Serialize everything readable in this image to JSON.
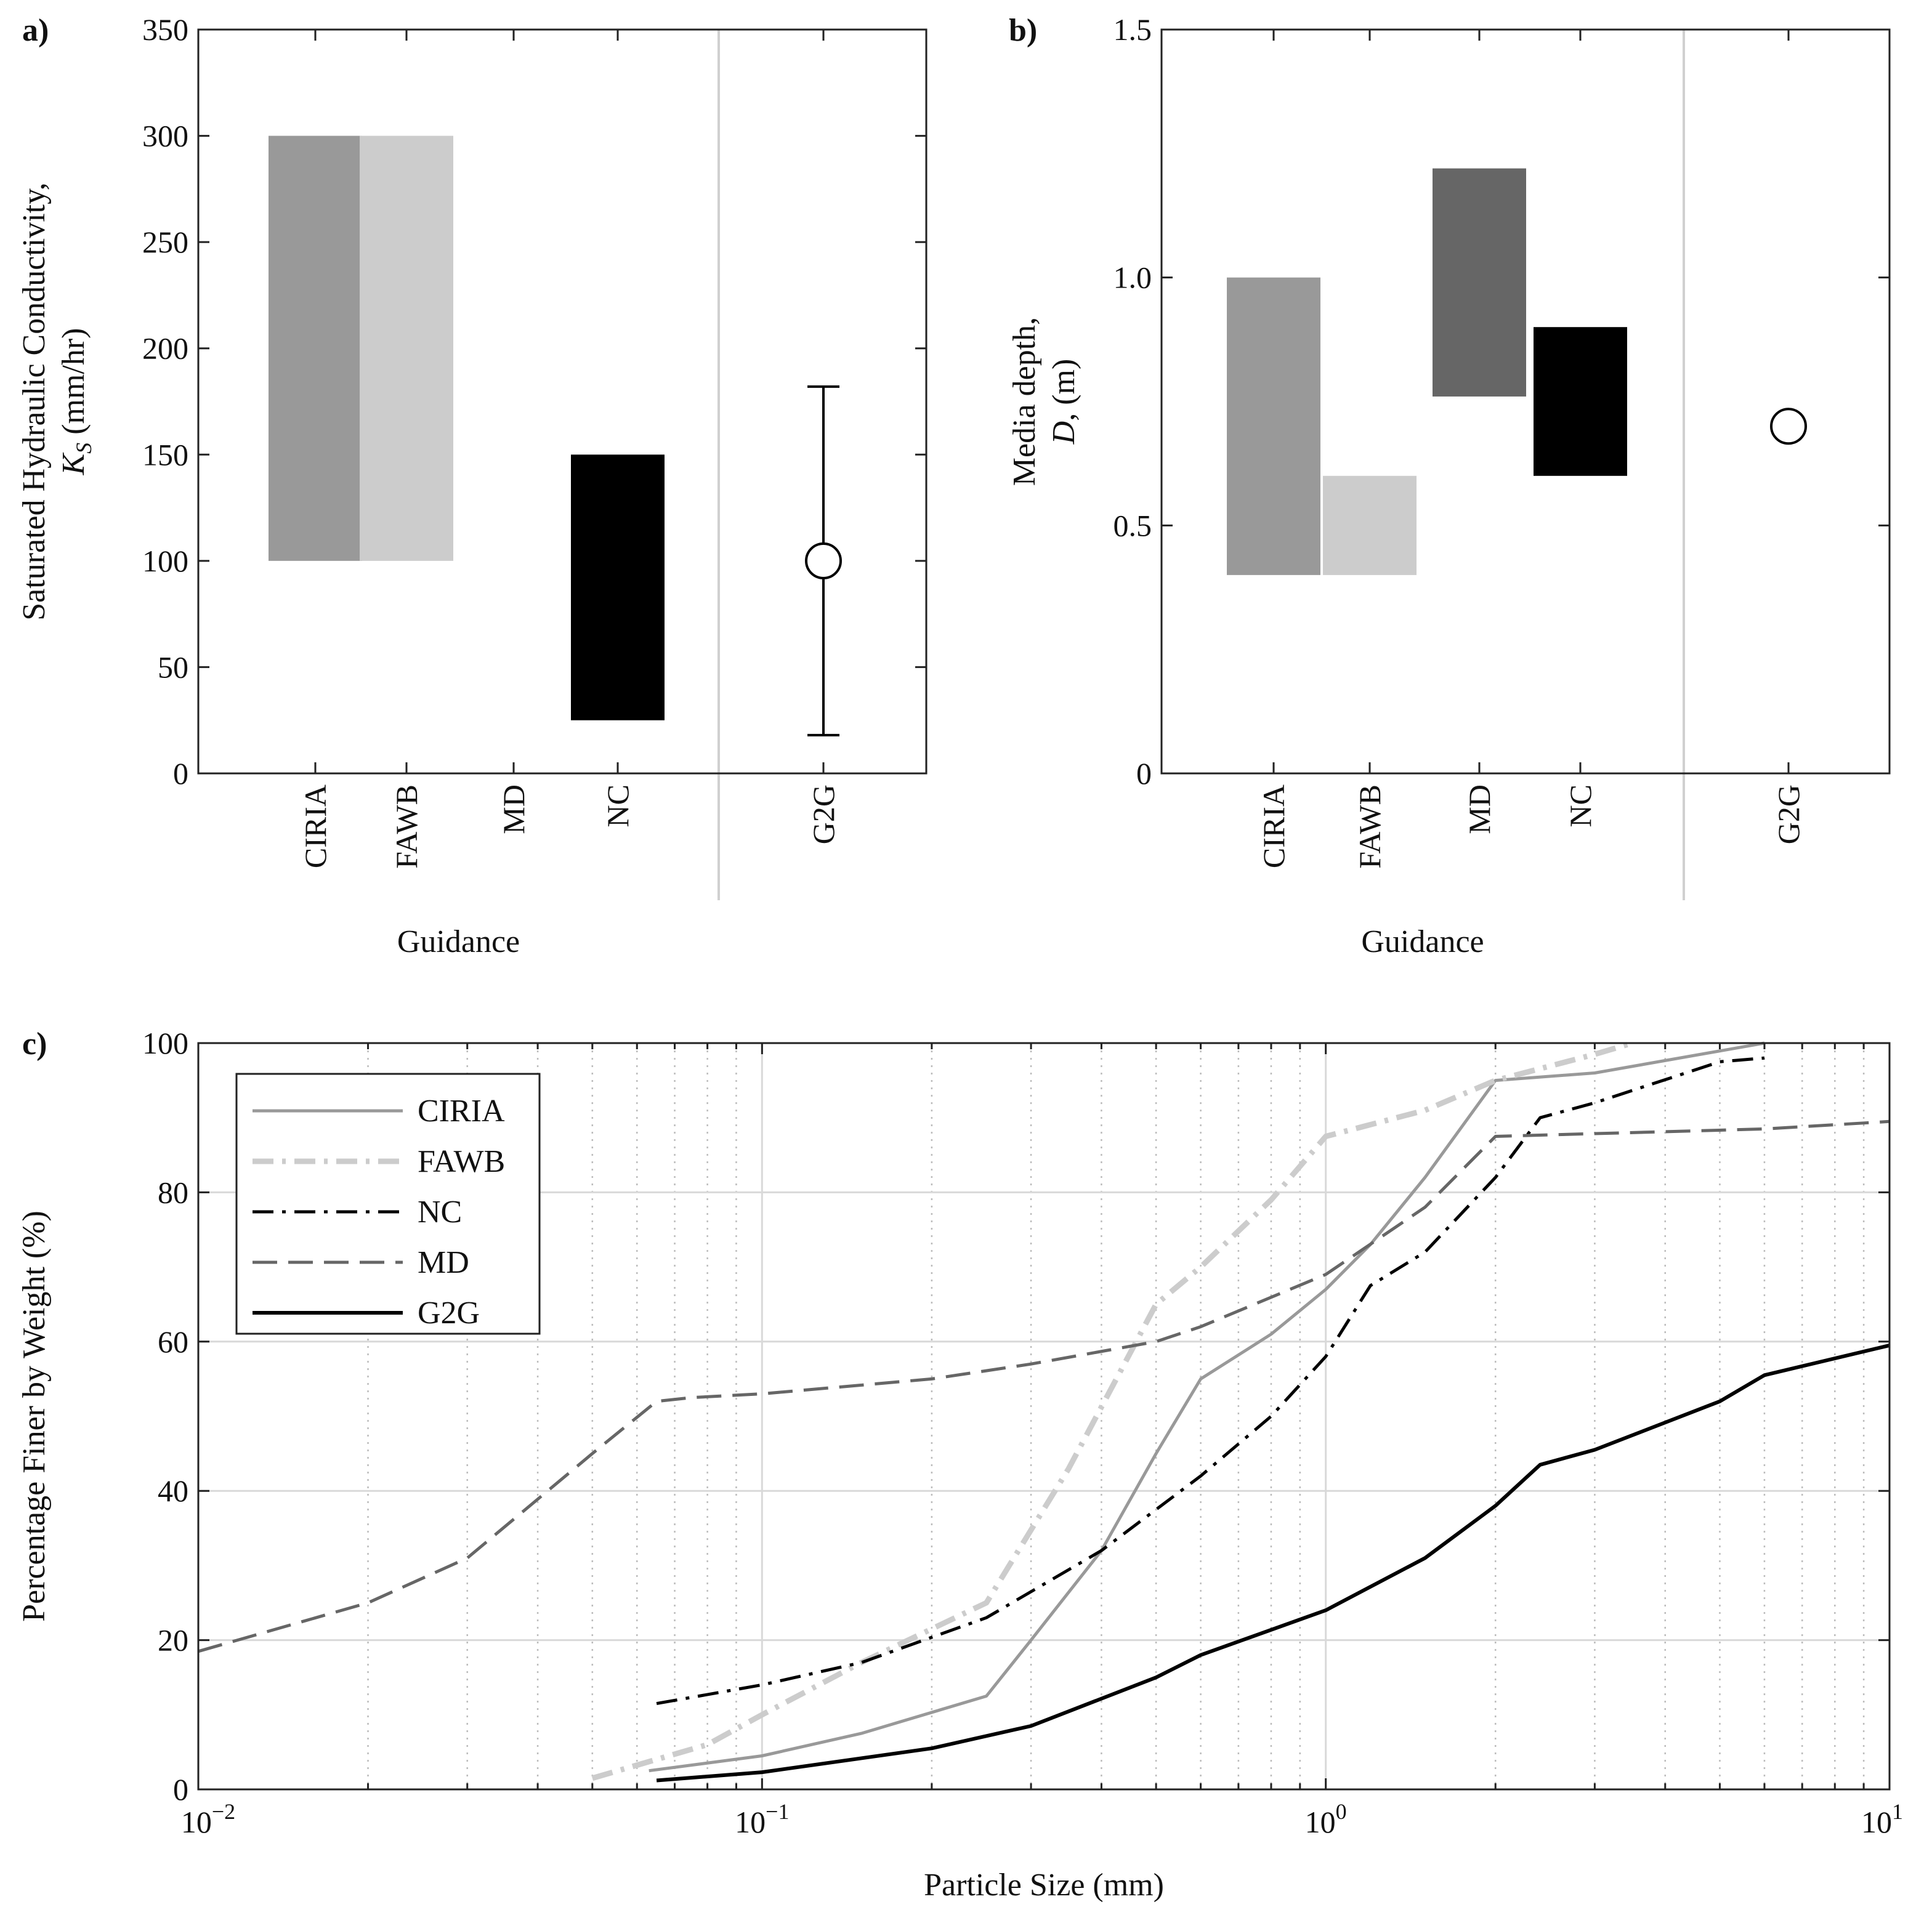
{
  "chart_data": [
    {
      "id": "a",
      "type": "bar",
      "panel_label": "a)",
      "xlabel": "Guidance",
      "ylabel": [
        "Saturated Hydraulic Conductivity,",
        "K",
        "S",
        " (mm/hr)"
      ],
      "ylim": [
        0,
        350
      ],
      "yticks": [
        0,
        50,
        100,
        150,
        200,
        250,
        300,
        350
      ],
      "categories": [
        "CIRIA",
        "FAWB",
        "MD",
        "NC",
        "G2G"
      ],
      "ranges": [
        {
          "category": "CIRIA",
          "low": 100,
          "high": 300,
          "color": "#999999"
        },
        {
          "category": "FAWB",
          "low": 100,
          "high": 300,
          "color": "#cccccc"
        },
        {
          "category": "NC",
          "low": 25,
          "high": 150,
          "color": "#000000"
        }
      ],
      "point": {
        "category": "G2G",
        "value": 100,
        "err_low": 18,
        "err_high": 182
      },
      "grid": false
    },
    {
      "id": "b",
      "type": "bar",
      "panel_label": "b)",
      "xlabel": "Guidance",
      "ylabel": [
        "Media depth,",
        "D",
        ", (m)"
      ],
      "ylim": [
        0,
        1.5
      ],
      "yticks": [
        0,
        0.5,
        1.0,
        1.5
      ],
      "ytick_labels": [
        "0",
        "0.5",
        "1.0",
        "1.5"
      ],
      "categories": [
        "CIRIA",
        "FAWB",
        "MD",
        "NC",
        "G2G"
      ],
      "ranges": [
        {
          "category": "CIRIA",
          "low": 0.4,
          "high": 1.0,
          "color": "#999999"
        },
        {
          "category": "FAWB",
          "low": 0.4,
          "high": 0.6,
          "color": "#cccccc"
        },
        {
          "category": "MD",
          "low": 0.76,
          "high": 1.22,
          "color": "#666666"
        },
        {
          "category": "NC",
          "low": 0.6,
          "high": 0.9,
          "color": "#000000"
        }
      ],
      "point": {
        "category": "G2G",
        "value": 0.7
      },
      "grid": false
    },
    {
      "id": "c",
      "type": "line",
      "panel_label": "c)",
      "xlabel": "Particle Size (mm)",
      "ylabel": "Percentage Finer by Weight (%)",
      "xscale": "log",
      "xlim": [
        0.01,
        10
      ],
      "ylim": [
        0,
        100
      ],
      "yticks": [
        0,
        20,
        40,
        60,
        80,
        100
      ],
      "xticks": [
        {
          "base": "10",
          "exp": "−2"
        },
        {
          "base": "10",
          "exp": "−1"
        },
        {
          "base": "10",
          "exp": "0"
        },
        {
          "base": "10",
          "exp": "1"
        }
      ],
      "legend_position": "top-left",
      "grid": true,
      "series": [
        {
          "name": "CIRIA",
          "color": "#999999",
          "style": "solid",
          "x": [
            0.063,
            0.1,
            0.15,
            0.25,
            0.3,
            0.4,
            0.5,
            0.6,
            0.8,
            1.0,
            1.2,
            1.5,
            2.0,
            3.0,
            6.0
          ],
          "y": [
            2.5,
            4.5,
            7.5,
            12.5,
            20,
            32,
            45,
            55,
            61,
            67,
            73,
            82,
            95,
            96,
            100
          ]
        },
        {
          "name": "FAWB",
          "color": "#cccccc",
          "style": "dashdot",
          "x": [
            0.05,
            0.08,
            0.1,
            0.15,
            0.25,
            0.35,
            0.5,
            0.6,
            0.8,
            1.0,
            1.5,
            2.0,
            3.0,
            3.5
          ],
          "y": [
            1.5,
            6,
            10,
            17,
            25,
            43,
            65,
            70,
            79,
            87.5,
            91,
            95,
            98.5,
            100
          ]
        },
        {
          "name": "NC",
          "color": "#000000",
          "style": "dashdot",
          "x": [
            0.065,
            0.1,
            0.15,
            0.25,
            0.4,
            0.6,
            0.8,
            1.0,
            1.2,
            1.5,
            2.0,
            2.4,
            3.0,
            5.0,
            6.0
          ],
          "y": [
            11.5,
            14,
            17,
            23,
            32,
            42,
            50,
            58,
            67.5,
            72,
            82,
            90,
            92,
            97.5,
            98
          ]
        },
        {
          "name": "MD",
          "color": "#666666",
          "style": "dashed",
          "x": [
            0.01,
            0.02,
            0.03,
            0.05,
            0.065,
            0.075,
            0.1,
            0.2,
            0.3,
            0.5,
            0.6,
            1.0,
            1.5,
            2.0,
            6.0,
            10.0
          ],
          "y": [
            18.5,
            25,
            31,
            45,
            52,
            52.5,
            53,
            55,
            57,
            60,
            62,
            69,
            78,
            87.5,
            88.5,
            89.5
          ]
        },
        {
          "name": "G2G",
          "color": "#000000",
          "style": "solid",
          "x": [
            0.065,
            0.1,
            0.2,
            0.3,
            0.5,
            0.6,
            1.0,
            1.5,
            2.0,
            2.4,
            3.0,
            5.0,
            6.0,
            10.0
          ],
          "y": [
            1.2,
            2.3,
            5.5,
            8.5,
            15,
            18,
            24,
            31,
            38,
            43.5,
            45.5,
            52,
            55.5,
            59.5
          ]
        }
      ]
    }
  ]
}
